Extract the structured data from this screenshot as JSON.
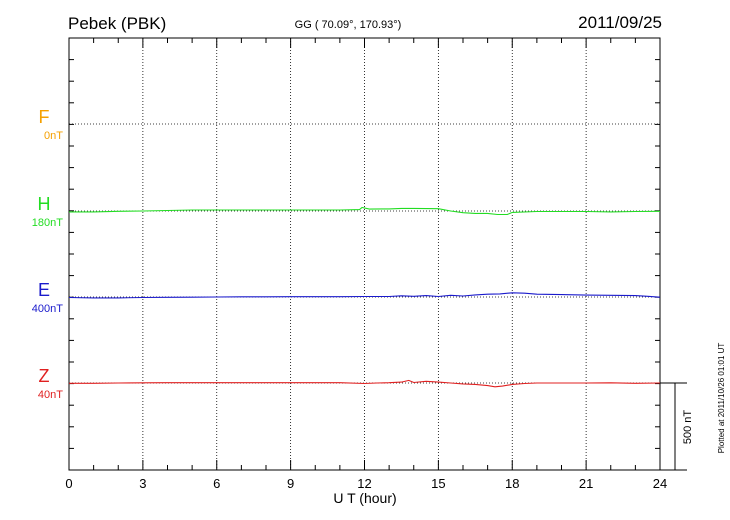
{
  "header": {
    "station": "Pebek (PBK)",
    "coords": "GG ( 70.09°, 170.93°)",
    "date": "2011/09/25"
  },
  "footer": {
    "xlabel": "U T (hour)",
    "scale_label": "500 nT",
    "plotted_note": "Plotted at 2011/10/26 01:01 UT"
  },
  "chart_data": {
    "type": "line",
    "title": "Pebek (PBK)",
    "xlabel": "U T (hour)",
    "ylabel": "",
    "xlim": [
      0,
      24
    ],
    "xticks": [
      0,
      3,
      6,
      9,
      12,
      15,
      18,
      21,
      24
    ],
    "grid": true,
    "scale_bar_nT": 500,
    "series": [
      {
        "name": "F",
        "baseline_label": "0nT",
        "color": "#f5a000",
        "x": [],
        "y": []
      },
      {
        "name": "H",
        "baseline_label": "180nT",
        "color": "#22dd22",
        "x": [
          0,
          1,
          2,
          3,
          4,
          5,
          6,
          7,
          8,
          9,
          10,
          11,
          11.8,
          11.9,
          12.2,
          13,
          13.5,
          14,
          14.5,
          15,
          15.5,
          16,
          16.5,
          17,
          17.4,
          17.8,
          18,
          19,
          20,
          21,
          22,
          23,
          24
        ],
        "y": [
          -5,
          -5,
          -2,
          0,
          3,
          6,
          6,
          6,
          6,
          6,
          6,
          6,
          8,
          20,
          11,
          12,
          15,
          15,
          14,
          13,
          0,
          -10,
          -14,
          -14,
          -20,
          -20,
          -8,
          -3,
          -3,
          -3,
          -5,
          -3,
          -2
        ]
      },
      {
        "name": "E",
        "baseline_label": "400nT",
        "color": "#1a1acc",
        "x": [
          0,
          1,
          2,
          3,
          4,
          5,
          6,
          7,
          8,
          9,
          10,
          11,
          12,
          13,
          13.5,
          14,
          14.5,
          15,
          15.5,
          16,
          16.5,
          17,
          17.5,
          18,
          18.5,
          19,
          20,
          21,
          22,
          23,
          23.5,
          24
        ],
        "y": [
          -3,
          -5,
          -5,
          -3,
          -2,
          -1,
          0,
          1,
          1,
          2,
          2,
          2,
          3,
          3,
          7,
          4,
          8,
          3,
          10,
          6,
          12,
          16,
          18,
          24,
          22,
          16,
          14,
          11,
          10,
          8,
          4,
          -1
        ]
      },
      {
        "name": "Z",
        "baseline_label": "40nT",
        "color": "#e02020",
        "x": [
          0,
          1,
          2,
          3,
          4,
          5,
          6,
          7,
          8,
          9,
          10,
          11,
          12,
          12.5,
          13,
          13.5,
          13.8,
          14,
          14.5,
          15,
          15.5,
          16,
          16.5,
          17,
          17.3,
          17.6,
          18,
          18.5,
          19,
          20,
          21,
          22,
          23,
          24
        ],
        "y": [
          -2,
          -2,
          0,
          1,
          2,
          2,
          2,
          2,
          2,
          2,
          2,
          2,
          -3,
          0,
          2,
          5,
          15,
          3,
          10,
          5,
          0,
          -5,
          -8,
          -15,
          -22,
          -18,
          -8,
          -3,
          0,
          0,
          0,
          1,
          -2,
          0
        ]
      }
    ]
  }
}
